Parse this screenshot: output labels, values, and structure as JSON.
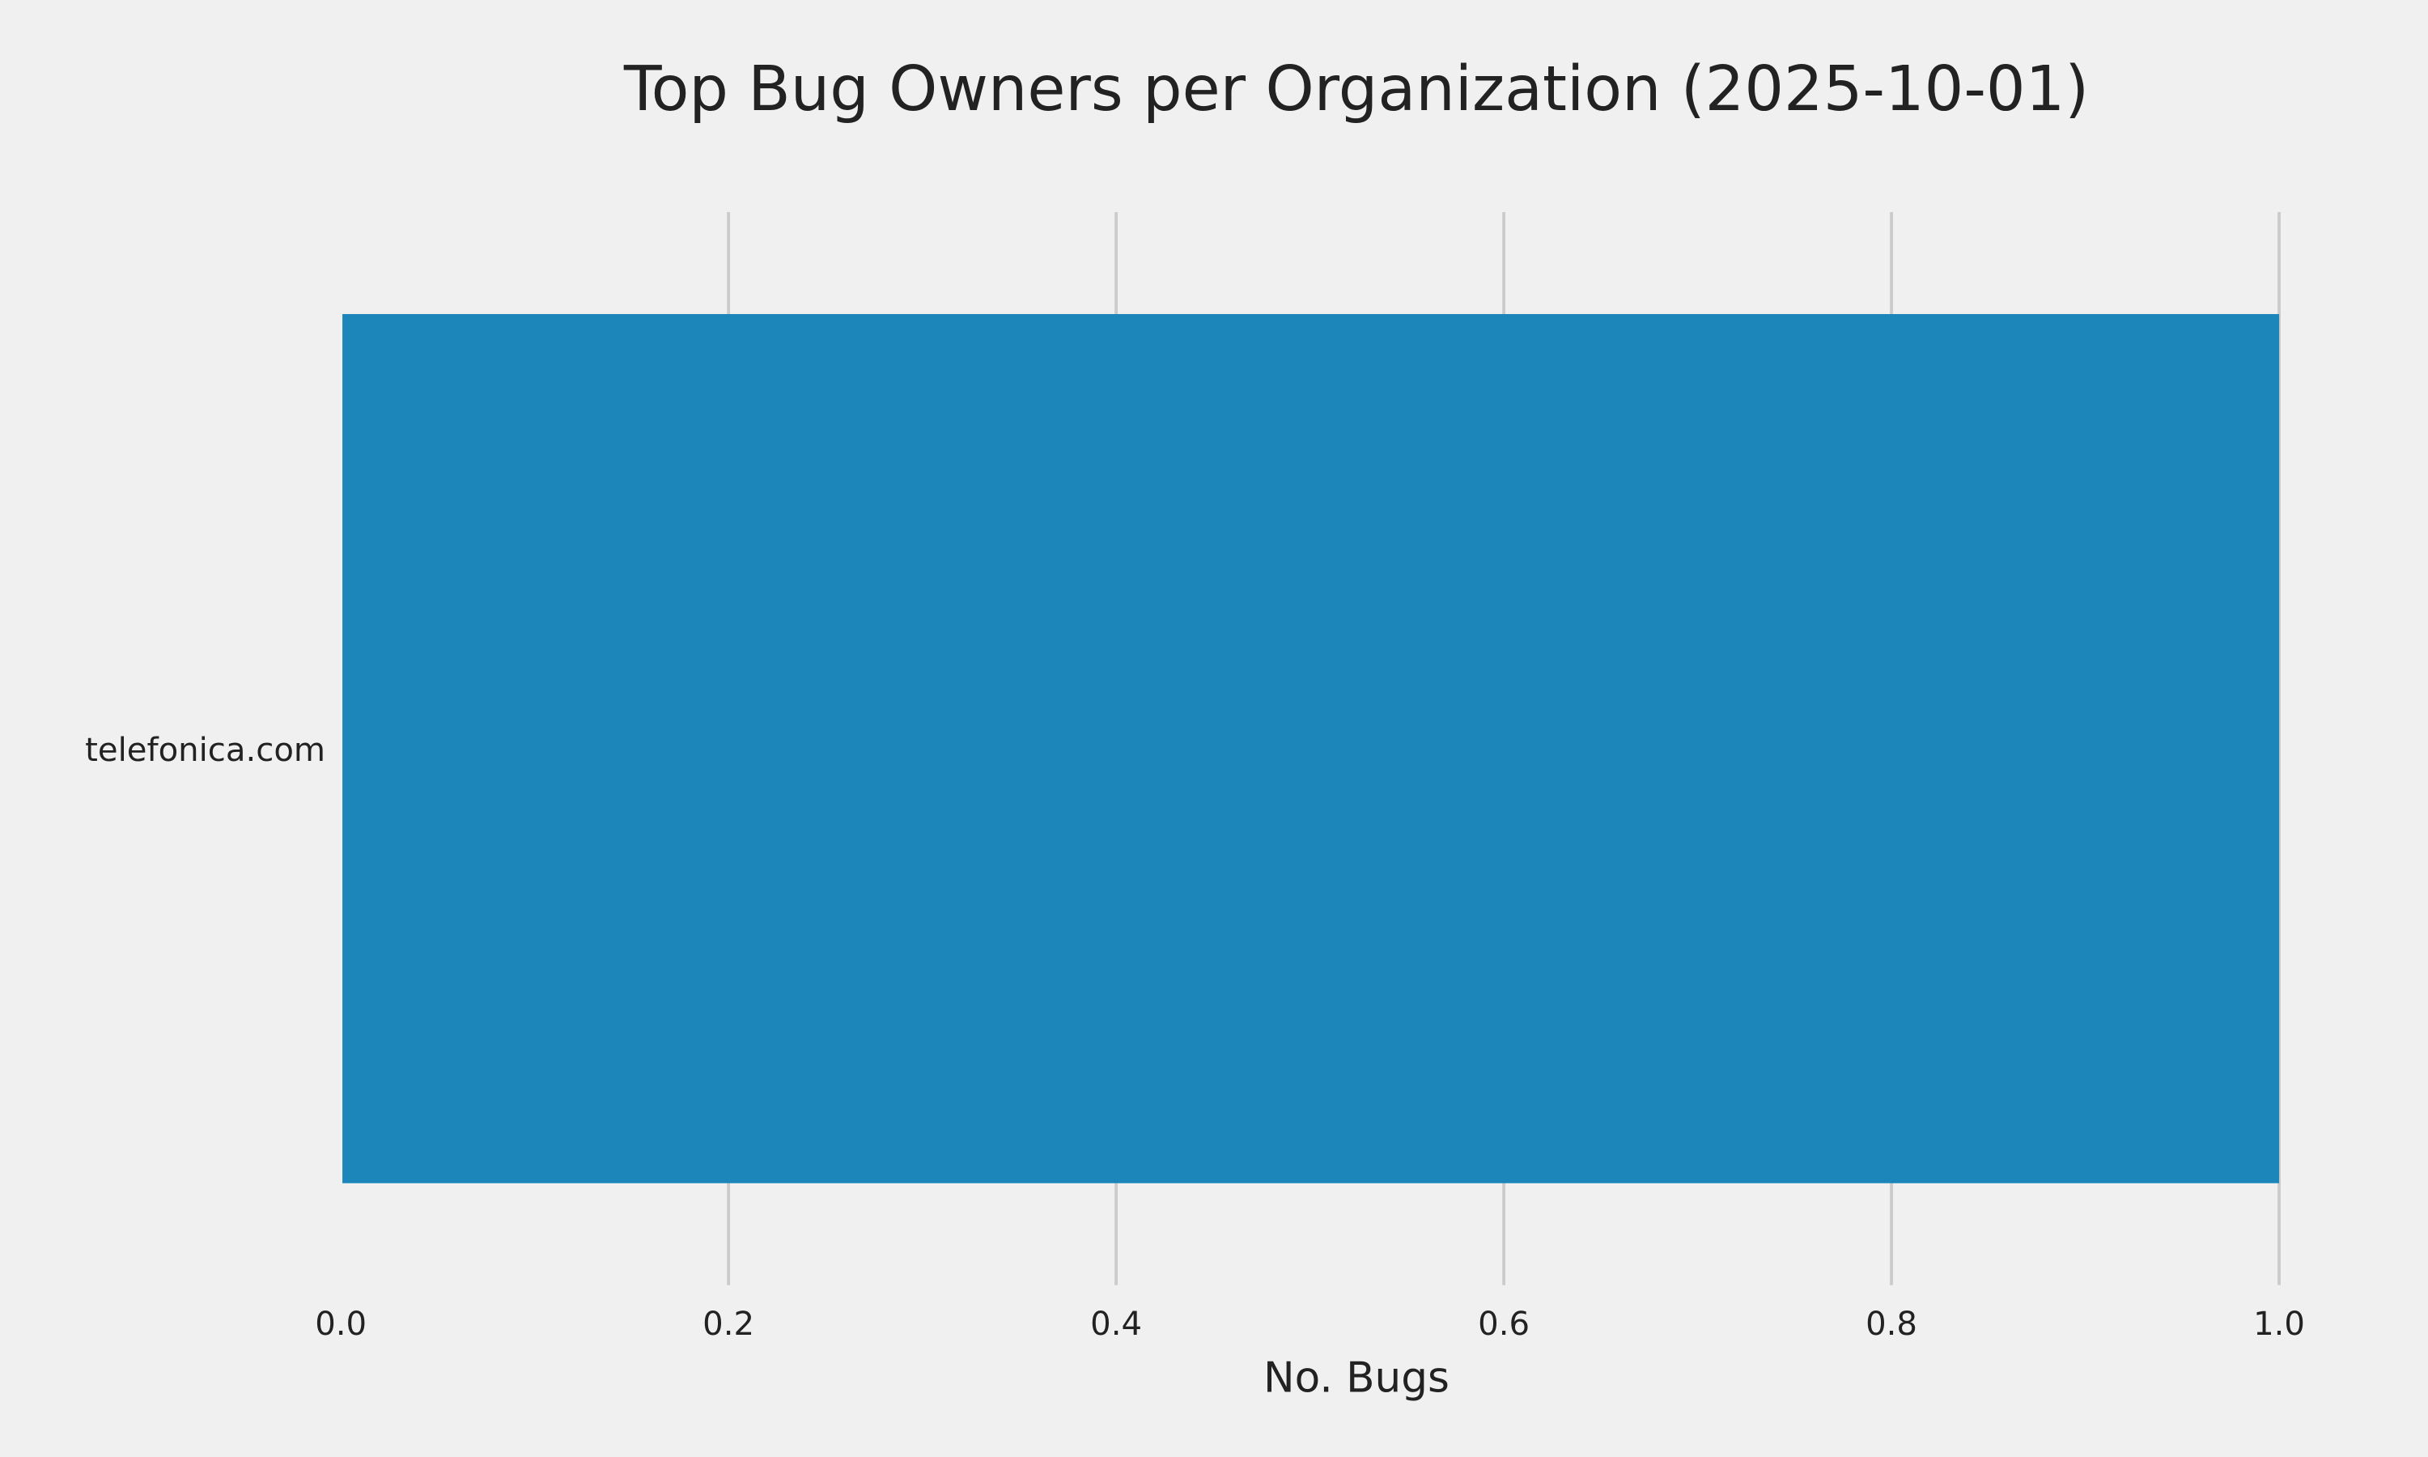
{
  "chart_data": {
    "type": "bar",
    "orientation": "horizontal",
    "title": "Top Bug Owners per Organization (2025-10-01)",
    "xlabel": "No. Bugs",
    "ylabel": "",
    "categories": [
      "telefonica.com"
    ],
    "values": [
      1
    ],
    "xlim": [
      0.0,
      1.0
    ],
    "xticks": [
      "0.0",
      "0.2",
      "0.4",
      "0.6",
      "0.8",
      "1.0"
    ],
    "grid": "vertical",
    "colors": {
      "bar": "#1c86ba",
      "background": "#f0f0f0",
      "grid": "#cbcbcb",
      "text": "#222222"
    }
  }
}
